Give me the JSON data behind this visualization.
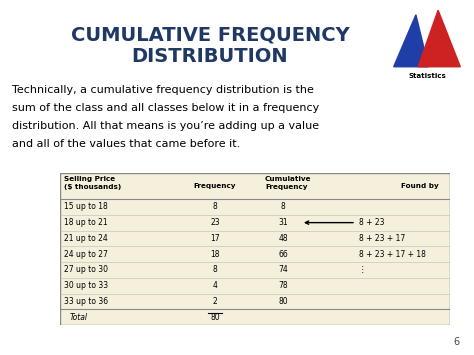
{
  "title_line1": "CUMULATIVE FREQUENCY",
  "title_line2": "DISTRIBUTION",
  "title_color": "#1F3864",
  "bg_color": "#FFFFFF",
  "body_lines": [
    "Technically, a cumulative frequency distribution is the",
    "sum of the class and all classes below it in a frequency",
    "distribution. All that means is you’re adding up a value",
    "and all of the values that came before it."
  ],
  "table_bg": "#F5F0DC",
  "table_border": "#888888",
  "header_row": [
    "Selling Price\n($ thousands)",
    "Frequency",
    "Cumulative\nFrequency",
    "Found by"
  ],
  "rows": [
    [
      "15 up to 18",
      "8",
      "8",
      ""
    ],
    [
      "18 up to 21",
      "23",
      "31",
      "8 + 23"
    ],
    [
      "21 up to 24",
      "17",
      "48",
      "8 + 23 + 17"
    ],
    [
      "24 up to 27",
      "18",
      "66",
      "8 + 23 + 17 + 18"
    ],
    [
      "27 up to 30",
      "8",
      "74",
      "⋮"
    ],
    [
      "30 up to 33",
      "4",
      "78",
      ""
    ],
    [
      "33 up to 36",
      "2",
      "80",
      ""
    ],
    [
      "Total",
      "80",
      "",
      ""
    ]
  ],
  "page_number": "6",
  "logo_blue": "#1F3EA8",
  "logo_red": "#CC2222"
}
